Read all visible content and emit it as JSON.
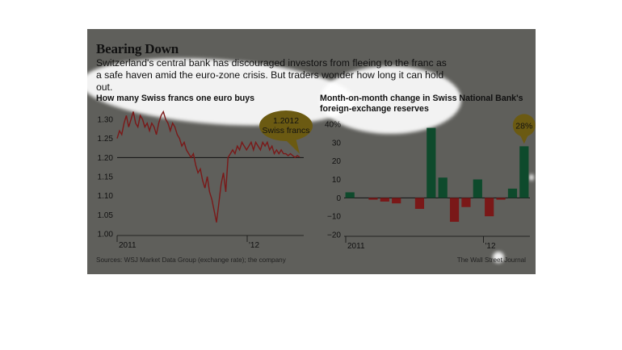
{
  "header": {
    "title": "Bearing Down",
    "dek": "Switzerland's central bank has discouraged investors from fleeing to the franc as a safe haven amid the euro-zone crisis. But traders wonder how long it can hold out."
  },
  "footer": {
    "sources": "Sources: WSJ Market Data Group (exchange rate); the company",
    "credit": "The Wall Street Journal"
  },
  "colors": {
    "panel": "#5f5f5b",
    "line": "#7a1818",
    "positive": "#0e4a2c",
    "negative": "#7a1818",
    "callout": "#6b5a12"
  },
  "chart_data": [
    {
      "type": "line",
      "title": "How many Swiss francs one euro buys",
      "ylim": [
        1.0,
        1.3
      ],
      "yticks": [
        "1.30",
        "1.25",
        "1.20",
        "1.15",
        "1.10",
        "1.05",
        "1.00"
      ],
      "xticks": [
        "2011",
        "'12"
      ],
      "reference_line": 1.2,
      "callout": {
        "value": "1.2012",
        "label": "Swiss francs"
      },
      "series": [
        {
          "values": [
            1.25,
            1.27,
            1.26,
            1.29,
            1.31,
            1.28,
            1.3,
            1.32,
            1.29,
            1.28,
            1.31,
            1.3,
            1.28,
            1.29,
            1.27,
            1.29,
            1.28,
            1.26,
            1.29,
            1.31,
            1.32,
            1.3,
            1.29,
            1.27,
            1.29,
            1.28,
            1.26,
            1.25,
            1.23,
            1.24,
            1.22,
            1.21,
            1.2,
            1.21,
            1.18,
            1.16,
            1.17,
            1.14,
            1.12,
            1.15,
            1.11,
            1.09,
            1.06,
            1.03,
            1.08,
            1.13,
            1.16,
            1.11,
            1.2,
            1.21,
            1.22,
            1.21,
            1.23,
            1.22,
            1.24,
            1.23,
            1.22,
            1.23,
            1.24,
            1.22,
            1.24,
            1.23,
            1.22,
            1.24,
            1.23,
            1.24,
            1.22,
            1.23,
            1.21,
            1.22,
            1.21,
            1.22,
            1.21,
            1.21,
            1.205,
            1.21,
            1.205,
            1.2,
            1.205,
            1.2012
          ]
        }
      ]
    },
    {
      "type": "bar",
      "title": "Month-on-month change in Swiss National Bank's foreign-exchange reserves",
      "ylim": [
        -20,
        40
      ],
      "yticks": [
        "40%",
        "30",
        "20",
        "10",
        "0",
        "−10",
        "−20"
      ],
      "xticks": [
        "2011",
        "'12"
      ],
      "callout": {
        "value": "28%"
      },
      "values": [
        3,
        0,
        -1,
        -2,
        -3,
        0,
        -6,
        38,
        11,
        -13,
        -5,
        10,
        -10,
        -1,
        5,
        28
      ]
    }
  ]
}
